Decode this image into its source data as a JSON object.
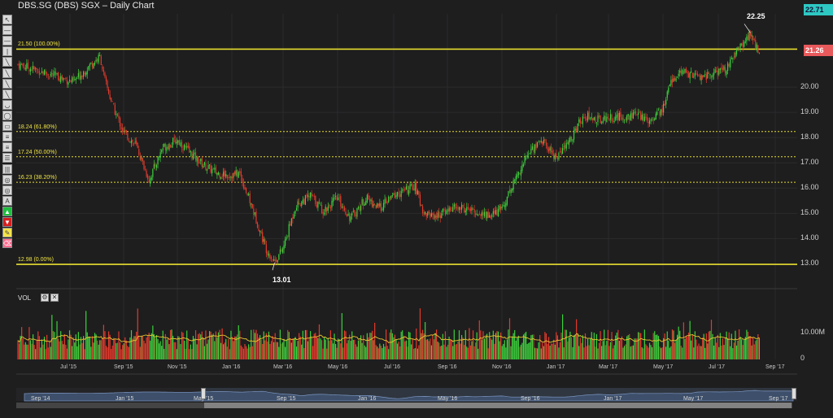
{
  "window": {
    "title": "DBS.SG (DBS) SGX – Daily Chart"
  },
  "toolbar": {
    "tools": [
      {
        "name": "pointer-tool",
        "glyph": "↖",
        "color": "default"
      },
      {
        "name": "horizontal-line-tool",
        "glyph": "—",
        "color": "default"
      },
      {
        "name": "horizontal-ray-tool",
        "glyph": "—",
        "color": "default"
      },
      {
        "name": "vertical-line-tool",
        "glyph": "|",
        "color": "default"
      },
      {
        "name": "trend-line-tool",
        "glyph": "╲",
        "color": "default"
      },
      {
        "name": "ray-tool",
        "glyph": "╲",
        "color": "default"
      },
      {
        "name": "extended-line-tool",
        "glyph": "╲",
        "color": "default"
      },
      {
        "name": "arrow-tool",
        "glyph": "╲",
        "color": "default"
      },
      {
        "name": "arc-tool",
        "glyph": "◡",
        "color": "default"
      },
      {
        "name": "ellipse-tool",
        "glyph": "◯",
        "color": "default"
      },
      {
        "name": "rectangle-tool",
        "glyph": "▭",
        "color": "default"
      },
      {
        "name": "channel-tool",
        "glyph": "≡",
        "color": "default"
      },
      {
        "name": "fibonacci-tool",
        "glyph": "≡",
        "color": "default"
      },
      {
        "name": "fib-fan-tool",
        "glyph": "☰",
        "color": "default"
      },
      {
        "name": "fib-time-tool",
        "glyph": "|||",
        "color": "default"
      },
      {
        "name": "gann-fan-tool",
        "glyph": "◎",
        "color": "default"
      },
      {
        "name": "cycle-tool",
        "glyph": "◎",
        "color": "default"
      },
      {
        "name": "text-tool",
        "glyph": "A",
        "color": "default"
      },
      {
        "name": "buy-arrow-tool",
        "glyph": "▲",
        "color": "green"
      },
      {
        "name": "sell-arrow-tool",
        "glyph": "▼",
        "color": "red"
      },
      {
        "name": "highlighter-tool",
        "glyph": "✎",
        "color": "yellow"
      },
      {
        "name": "eraser-tool",
        "glyph": "⌫",
        "color": "pink"
      }
    ]
  },
  "price_axis": {
    "ticks": [
      "20.00",
      "19.00",
      "18.00",
      "17.00",
      "16.00",
      "15.00",
      "14.00",
      "13.00"
    ],
    "last_price_label": "21.26",
    "high_label": "22.71"
  },
  "volume_axis": {
    "ticks": [
      "10.00M",
      "0"
    ]
  },
  "fib_levels": [
    {
      "price": 21.5,
      "label": "21.50 (100.00%)"
    },
    {
      "price": 18.24,
      "label": "18.24 (61.80%)"
    },
    {
      "price": 17.24,
      "label": "17.24 (50.00%)"
    },
    {
      "price": 16.23,
      "label": "16.23 (38.20%)"
    },
    {
      "price": 12.98,
      "label": "12.98 (0.00%)"
    }
  ],
  "annotations": {
    "high": "22.25",
    "low": "13.01"
  },
  "volume_panel": {
    "title": "VOL",
    "settings_label": "⚙",
    "close_label": "✕"
  },
  "x_axis": {
    "labels": [
      "Jul '15",
      "Sep '15",
      "Nov '15",
      "Jan '16",
      "Mar '16",
      "May '16",
      "Jul '16",
      "Sep '16",
      "Nov '16",
      "Jan '17",
      "Mar '17",
      "May '17",
      "Jul '17",
      "Sep '17"
    ]
  },
  "navigator": {
    "labels": [
      "Sep '14",
      "Jan '15",
      "May '15",
      "Sep '15",
      "Jan '16",
      "May '16",
      "Sep '16",
      "Jan '17",
      "May '17",
      "Sep '17"
    ]
  },
  "colors": {
    "background": "#1e1e1f",
    "up": "#3cd13c",
    "down": "#e33a2c",
    "fib": "#e8de2e",
    "grid": "#2b2b2c",
    "last_price": "#e8595b",
    "high_badge": "#2ec7c2"
  },
  "chart_data": {
    "type": "candlestick",
    "series_name": "DBS.SG (DBS) SGX",
    "ylim": [
      12.5,
      22.9
    ],
    "x_range": [
      "2015-06-01",
      "2017-09-30"
    ],
    "points": [
      {
        "date": "2015-06-01",
        "close": 20.9
      },
      {
        "date": "2015-06-20",
        "close": 20.5
      },
      {
        "date": "2015-07-05",
        "close": 20.2
      },
      {
        "date": "2015-07-25",
        "close": 20.9
      },
      {
        "date": "2015-08-05",
        "close": 21.2
      },
      {
        "date": "2015-08-10",
        "close": 20.3
      },
      {
        "date": "2015-08-20",
        "close": 19.2
      },
      {
        "date": "2015-09-01",
        "close": 18.2
      },
      {
        "date": "2015-09-15",
        "close": 17.7
      },
      {
        "date": "2015-09-30",
        "close": 16.3
      },
      {
        "date": "2015-10-15",
        "close": 17.6
      },
      {
        "date": "2015-11-01",
        "close": 17.9
      },
      {
        "date": "2015-11-15",
        "close": 17.4
      },
      {
        "date": "2015-12-01",
        "close": 16.9
      },
      {
        "date": "2015-12-15",
        "close": 16.6
      },
      {
        "date": "2015-12-31",
        "close": 16.5
      },
      {
        "date": "2016-01-10",
        "close": 16.6
      },
      {
        "date": "2016-01-25",
        "close": 15.2
      },
      {
        "date": "2016-02-10",
        "close": 13.6
      },
      {
        "date": "2016-02-20",
        "close": 13.1
      },
      {
        "date": "2016-03-01",
        "close": 13.6
      },
      {
        "date": "2016-03-15",
        "close": 15.3
      },
      {
        "date": "2016-04-01",
        "close": 15.7
      },
      {
        "date": "2016-04-15",
        "close": 15.1
      },
      {
        "date": "2016-05-01",
        "close": 15.6
      },
      {
        "date": "2016-05-15",
        "close": 14.8
      },
      {
        "date": "2016-06-01",
        "close": 15.6
      },
      {
        "date": "2016-06-15",
        "close": 15.2
      },
      {
        "date": "2016-07-01",
        "close": 15.7
      },
      {
        "date": "2016-07-15",
        "close": 15.9
      },
      {
        "date": "2016-07-25",
        "close": 16.1
      },
      {
        "date": "2016-08-05",
        "close": 15.0
      },
      {
        "date": "2016-08-20",
        "close": 14.9
      },
      {
        "date": "2016-09-05",
        "close": 15.2
      },
      {
        "date": "2016-09-20",
        "close": 15.2
      },
      {
        "date": "2016-10-05",
        "close": 15.0
      },
      {
        "date": "2016-10-20",
        "close": 14.9
      },
      {
        "date": "2016-11-01",
        "close": 15.2
      },
      {
        "date": "2016-11-15",
        "close": 16.3
      },
      {
        "date": "2016-12-01",
        "close": 17.4
      },
      {
        "date": "2016-12-15",
        "close": 17.9
      },
      {
        "date": "2017-01-01",
        "close": 17.2
      },
      {
        "date": "2017-01-15",
        "close": 17.8
      },
      {
        "date": "2017-02-01",
        "close": 18.9
      },
      {
        "date": "2017-02-15",
        "close": 18.7
      },
      {
        "date": "2017-03-01",
        "close": 18.8
      },
      {
        "date": "2017-03-15",
        "close": 18.8
      },
      {
        "date": "2017-04-01",
        "close": 18.9
      },
      {
        "date": "2017-04-15",
        "close": 18.7
      },
      {
        "date": "2017-05-01",
        "close": 19.1
      },
      {
        "date": "2017-05-10",
        "close": 20.3
      },
      {
        "date": "2017-05-25",
        "close": 20.6
      },
      {
        "date": "2017-06-10",
        "close": 20.4
      },
      {
        "date": "2017-06-25",
        "close": 20.5
      },
      {
        "date": "2017-07-10",
        "close": 20.7
      },
      {
        "date": "2017-07-25",
        "close": 21.6
      },
      {
        "date": "2017-08-05",
        "close": 22.1
      },
      {
        "date": "2017-08-15",
        "close": 21.3
      }
    ]
  }
}
